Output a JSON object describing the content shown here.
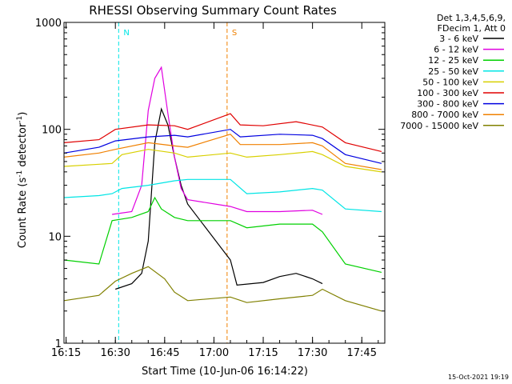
{
  "chart_data": {
    "type": "line",
    "title": "RHESSI Observing Summary Count Rates",
    "xlabel": "Start Time (10-Jun-06 16:14:22)",
    "ylabel_main": "Count Rate (s",
    "ylabel_sup1": "-1",
    "ylabel_mid": " detector",
    "ylabel_sup2": "-1",
    "ylabel_end": ")",
    "yscale": "log",
    "xlim": [
      "16:14:22",
      "17:52:00"
    ],
    "ylim": [
      1,
      1000
    ],
    "x_ticks": [
      "16:15",
      "16:30",
      "16:45",
      "17:00",
      "17:15",
      "17:30",
      "17:45"
    ],
    "y_ticks": [
      "1",
      "10",
      "100",
      "1000"
    ],
    "legend_title_1": "Det 1,3,4,5,6,9,",
    "legend_title_2": "FDecim 1, Att 0",
    "legend_position": "top-right",
    "flags": [
      {
        "label": "N",
        "color": "#00e5e5",
        "from": "16:31",
        "to": "16:31"
      },
      {
        "label": "S",
        "color": "#f08000",
        "from": "17:04",
        "to": "17:04"
      }
    ],
    "series": [
      {
        "name": "3 - 6 keV",
        "color": "#000000",
        "points": [
          [
            "16:30",
            3.2
          ],
          [
            "16:35",
            3.6
          ],
          [
            "16:38",
            4.5
          ],
          [
            "16:40",
            9
          ],
          [
            "16:42",
            75
          ],
          [
            "16:44",
            155
          ],
          [
            "16:46",
            110
          ],
          [
            "16:48",
            55
          ],
          [
            "16:50",
            30
          ],
          [
            "16:52",
            20
          ],
          [
            "17:05",
            6
          ],
          [
            "17:07",
            3.5
          ],
          [
            "17:15",
            3.7
          ],
          [
            "17:20",
            4.2
          ],
          [
            "17:25",
            4.5
          ],
          [
            "17:30",
            4.0
          ],
          [
            "17:33",
            3.6
          ]
        ]
      },
      {
        "name": "6 - 12 keV",
        "color": "#e000e0",
        "points": [
          [
            "16:29",
            16
          ],
          [
            "16:35",
            17
          ],
          [
            "16:38",
            30
          ],
          [
            "16:40",
            150
          ],
          [
            "16:42",
            300
          ],
          [
            "16:44",
            380
          ],
          [
            "16:46",
            140
          ],
          [
            "16:48",
            55
          ],
          [
            "16:50",
            28
          ],
          [
            "16:52",
            22
          ],
          [
            "17:05",
            19
          ],
          [
            "17:10",
            17
          ],
          [
            "17:20",
            17
          ],
          [
            "17:30",
            17.5
          ],
          [
            "17:33",
            16
          ]
        ]
      },
      {
        "name": "12 - 25 keV",
        "color": "#00d000",
        "points": [
          [
            "16:14:22",
            6
          ],
          [
            "16:25",
            5.5
          ],
          [
            "16:29",
            14
          ],
          [
            "16:35",
            15
          ],
          [
            "16:40",
            17
          ],
          [
            "16:42",
            23
          ],
          [
            "16:44",
            18
          ],
          [
            "16:48",
            15
          ],
          [
            "16:52",
            14
          ],
          [
            "17:05",
            14
          ],
          [
            "17:10",
            12
          ],
          [
            "17:20",
            13
          ],
          [
            "17:30",
            13
          ],
          [
            "17:33",
            11
          ],
          [
            "17:40",
            5.5
          ],
          [
            "17:51",
            4.6
          ]
        ]
      },
      {
        "name": "25 - 50 keV",
        "color": "#00e5e5",
        "points": [
          [
            "16:14:22",
            23
          ],
          [
            "16:25",
            24
          ],
          [
            "16:29",
            25
          ],
          [
            "16:32",
            28
          ],
          [
            "16:40",
            30
          ],
          [
            "16:48",
            33
          ],
          [
            "16:52",
            34
          ],
          [
            "17:05",
            34
          ],
          [
            "17:10",
            25
          ],
          [
            "17:20",
            26
          ],
          [
            "17:30",
            28
          ],
          [
            "17:33",
            27
          ],
          [
            "17:40",
            18
          ],
          [
            "17:51",
            17
          ]
        ]
      },
      {
        "name": "50 - 100 keV",
        "color": "#d8d000",
        "points": [
          [
            "16:14:22",
            45
          ],
          [
            "16:29",
            48
          ],
          [
            "16:32",
            58
          ],
          [
            "16:40",
            65
          ],
          [
            "16:48",
            60
          ],
          [
            "16:52",
            55
          ],
          [
            "17:05",
            60
          ],
          [
            "17:10",
            55
          ],
          [
            "17:20",
            58
          ],
          [
            "17:30",
            62
          ],
          [
            "17:33",
            58
          ],
          [
            "17:40",
            45
          ],
          [
            "17:51",
            40
          ]
        ]
      },
      {
        "name": "100 - 300 keV",
        "color": "#e00000",
        "points": [
          [
            "16:14:22",
            75
          ],
          [
            "16:25",
            80
          ],
          [
            "16:30",
            100
          ],
          [
            "16:40",
            110
          ],
          [
            "16:48",
            108
          ],
          [
            "16:52",
            100
          ],
          [
            "17:05",
            140
          ],
          [
            "17:08",
            110
          ],
          [
            "17:15",
            108
          ],
          [
            "17:25",
            118
          ],
          [
            "17:33",
            105
          ],
          [
            "17:40",
            75
          ],
          [
            "17:51",
            62
          ]
        ]
      },
      {
        "name": "300 - 800 keV",
        "color": "#0000e0",
        "points": [
          [
            "16:14:22",
            60
          ],
          [
            "16:25",
            68
          ],
          [
            "16:30",
            78
          ],
          [
            "16:40",
            85
          ],
          [
            "16:48",
            88
          ],
          [
            "16:52",
            85
          ],
          [
            "17:05",
            100
          ],
          [
            "17:08",
            85
          ],
          [
            "17:20",
            90
          ],
          [
            "17:30",
            88
          ],
          [
            "17:33",
            82
          ],
          [
            "17:40",
            58
          ],
          [
            "17:51",
            48
          ]
        ]
      },
      {
        "name": "800 - 7000 keV",
        "color": "#f08000",
        "points": [
          [
            "16:14:22",
            55
          ],
          [
            "16:25",
            60
          ],
          [
            "16:30",
            65
          ],
          [
            "16:40",
            75
          ],
          [
            "16:48",
            70
          ],
          [
            "16:52",
            68
          ],
          [
            "17:05",
            90
          ],
          [
            "17:08",
            72
          ],
          [
            "17:20",
            72
          ],
          [
            "17:30",
            75
          ],
          [
            "17:33",
            70
          ],
          [
            "17:40",
            48
          ],
          [
            "17:51",
            42
          ]
        ]
      },
      {
        "name": "7000 - 15000 keV",
        "color": "#808000",
        "points": [
          [
            "16:14:22",
            2.5
          ],
          [
            "16:25",
            2.8
          ],
          [
            "16:30",
            3.8
          ],
          [
            "16:35",
            4.5
          ],
          [
            "16:40",
            5.2
          ],
          [
            "16:45",
            4.0
          ],
          [
            "16:48",
            3.0
          ],
          [
            "16:52",
            2.5
          ],
          [
            "17:05",
            2.7
          ],
          [
            "17:10",
            2.4
          ],
          [
            "17:20",
            2.6
          ],
          [
            "17:30",
            2.8
          ],
          [
            "17:33",
            3.2
          ],
          [
            "17:40",
            2.5
          ],
          [
            "17:51",
            2.0
          ]
        ]
      }
    ]
  },
  "footer_date": "15-Oct-2021 19:19"
}
